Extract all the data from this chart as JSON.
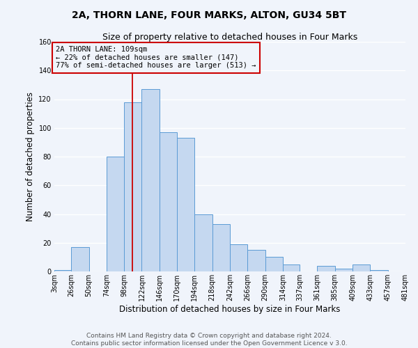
{
  "title": "2A, THORN LANE, FOUR MARKS, ALTON, GU34 5BT",
  "subtitle": "Size of property relative to detached houses in Four Marks",
  "xlabel": "Distribution of detached houses by size in Four Marks",
  "ylabel": "Number of detached properties",
  "bin_edges": [
    3,
    26,
    50,
    74,
    98,
    122,
    146,
    170,
    194,
    218,
    242,
    266,
    290,
    314,
    337,
    361,
    385,
    409,
    433,
    457,
    481
  ],
  "bar_heights": [
    1,
    17,
    0,
    80,
    118,
    127,
    97,
    93,
    40,
    33,
    19,
    15,
    10,
    5,
    0,
    4,
    2,
    5,
    1,
    0
  ],
  "tick_labels": [
    "3sqm",
    "26sqm",
    "50sqm",
    "74sqm",
    "98sqm",
    "122sqm",
    "146sqm",
    "170sqm",
    "194sqm",
    "218sqm",
    "242sqm",
    "266sqm",
    "290sqm",
    "314sqm",
    "337sqm",
    "361sqm",
    "385sqm",
    "409sqm",
    "433sqm",
    "457sqm",
    "481sqm"
  ],
  "bar_color": "#c5d8f0",
  "bar_edge_color": "#5b9bd5",
  "vline_x": 109,
  "vline_color": "#cc0000",
  "ylim": [
    0,
    160
  ],
  "yticks": [
    0,
    20,
    40,
    60,
    80,
    100,
    120,
    140,
    160
  ],
  "annotation_title": "2A THORN LANE: 109sqm",
  "annotation_line1": "← 22% of detached houses are smaller (147)",
  "annotation_line2": "77% of semi-detached houses are larger (513) →",
  "annotation_box_color": "#cc0000",
  "footer_line1": "Contains HM Land Registry data © Crown copyright and database right 2024.",
  "footer_line2": "Contains public sector information licensed under the Open Government Licence v 3.0.",
  "bg_color": "#f0f4fb",
  "grid_color": "#ffffff",
  "title_fontsize": 10,
  "subtitle_fontsize": 9,
  "axis_label_fontsize": 8.5,
  "tick_fontsize": 7,
  "annotation_fontsize": 7.5,
  "footer_fontsize": 6.5
}
